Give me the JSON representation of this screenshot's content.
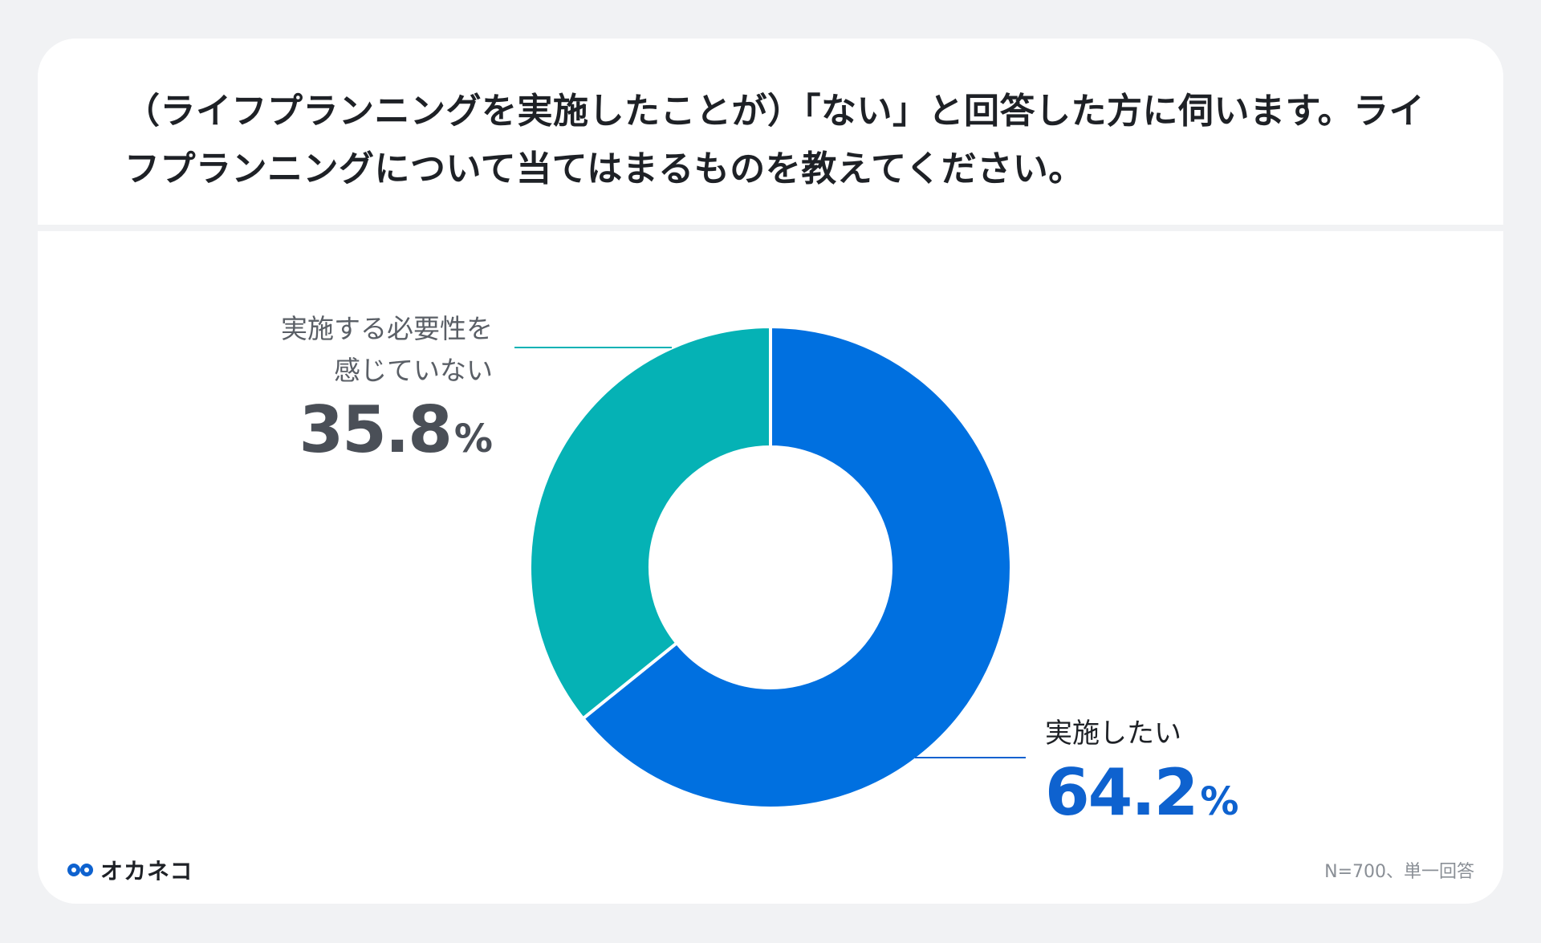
{
  "title": "（ライフプランニングを実施したことが）「ない」と回答した方に伺います。ライフプランニングについて当てはまるものを教えてください。",
  "logo": {
    "text": "オカネコ",
    "icon": "owl-eyes-icon",
    "icon_color": "#0e62cf"
  },
  "note": "N=700、単一回答",
  "chart_data": {
    "type": "pie",
    "donut": true,
    "categories": [
      "実施したい",
      "実施する必要性を感じていない"
    ],
    "values": [
      64.2,
      35.8
    ],
    "unit": "%",
    "colors": [
      "#0070e0",
      "#05b2b5"
    ],
    "labels": [
      {
        "category_lines": [
          "実施したい"
        ],
        "value_text": "64.2",
        "unit": "%",
        "value_color": "#0e62cf"
      },
      {
        "category_lines": [
          "実施する必要性を",
          "感じていない"
        ],
        "value_text": "35.8",
        "unit": "%",
        "value_color": "#4a4f57"
      }
    ]
  }
}
